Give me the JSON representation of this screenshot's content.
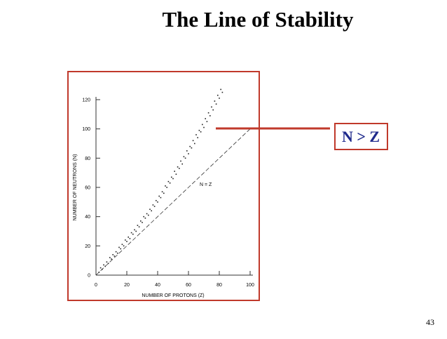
{
  "slide": {
    "title": "The Line of Stability",
    "callout": "N > Z",
    "page_number": "43"
  },
  "chart_data": {
    "type": "scatter",
    "x_label": "NUMBER OF PROTONS (Z)",
    "y_label": "NUMBER OF NEUTRONS (N)",
    "annotation": "N = Z",
    "xlim": [
      0,
      100
    ],
    "ylim": [
      0,
      120
    ],
    "xticks": [
      0,
      20,
      40,
      60,
      80,
      100
    ],
    "yticks": [
      0,
      20,
      40,
      60,
      80,
      100,
      120
    ],
    "color": "#222222",
    "x": [
      2,
      4,
      6,
      8,
      10,
      12,
      14,
      16,
      18,
      20,
      22,
      24,
      26,
      28,
      30,
      32,
      34,
      36,
      38,
      40,
      42,
      44,
      46,
      48,
      50,
      52,
      54,
      56,
      58,
      60,
      62,
      64,
      66,
      68,
      70,
      72,
      74,
      76,
      78,
      80,
      82,
      3,
      5,
      7,
      9,
      11,
      13,
      15,
      17,
      19,
      21,
      23,
      25,
      27,
      29,
      31,
      33,
      35,
      37,
      39,
      41,
      43,
      45,
      47,
      49,
      51,
      53,
      55,
      57,
      59,
      61,
      63,
      65,
      67,
      69,
      71,
      73,
      75,
      77,
      79,
      81
    ],
    "y": [
      2,
      4,
      6,
      8,
      11,
      13,
      15,
      18,
      20,
      23,
      25,
      28,
      30,
      33,
      36,
      39,
      41,
      44,
      47,
      50,
      53,
      56,
      60,
      63,
      66,
      69,
      73,
      76,
      80,
      83,
      87,
      90,
      94,
      98,
      101,
      105,
      109,
      113,
      117,
      121,
      125,
      5,
      7,
      9,
      12,
      14,
      16,
      19,
      21,
      24,
      26,
      29,
      31,
      34,
      37,
      40,
      42,
      45,
      48,
      51,
      54,
      57,
      61,
      64,
      67,
      71,
      74,
      78,
      81,
      85,
      88,
      92,
      96,
      99,
      103,
      107,
      111,
      115,
      119,
      123,
      127
    ]
  }
}
